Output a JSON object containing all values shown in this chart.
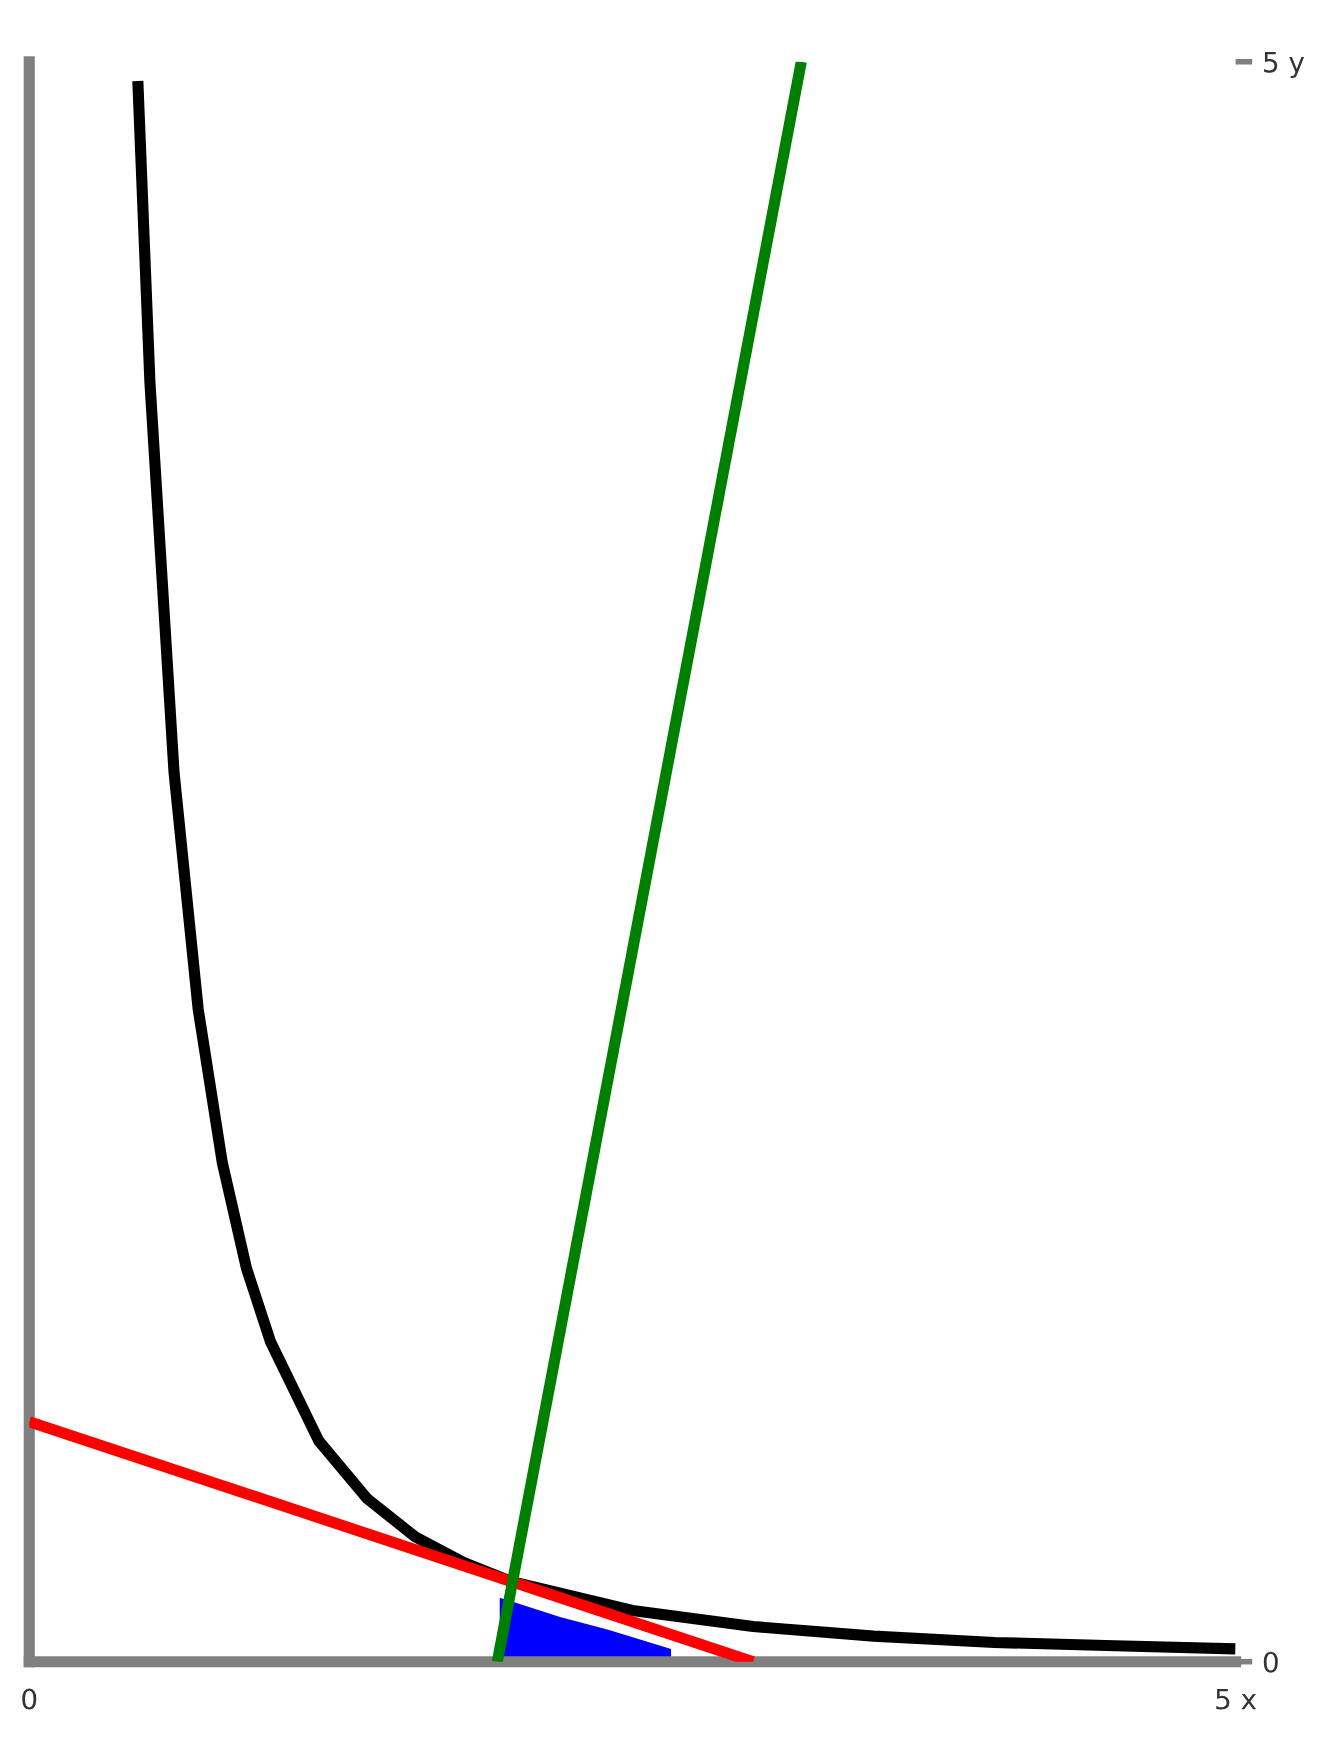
{
  "chart_data": {
    "type": "line",
    "xlim": [
      0,
      5
    ],
    "ylim": [
      0,
      5
    ],
    "xticks": [
      0,
      {
        "value": 5,
        "label": "5 x"
      }
    ],
    "yticks": [
      0,
      {
        "value": 5,
        "label": "5 y"
      }
    ],
    "series": [
      {
        "type": "area",
        "color": "#0000ff",
        "x": [
          1.95,
          2.2,
          2.4,
          2.66
        ],
        "values": [
          0.2,
          0.14,
          0.1,
          0.04
        ]
      },
      {
        "color": "#000000",
        "x": [
          0.45,
          0.5,
          0.6,
          0.7,
          0.8,
          0.9,
          1.0,
          1.2,
          1.4,
          1.6,
          1.8,
          2.0,
          2.5,
          3.0,
          3.5,
          4.0,
          4.5,
          5.0
        ],
        "values": [
          4.94,
          4.0,
          2.78,
          2.04,
          1.56,
          1.23,
          1.0,
          0.69,
          0.51,
          0.39,
          0.31,
          0.25,
          0.16,
          0.11,
          0.08,
          0.06,
          0.05,
          0.04
        ]
      },
      {
        "color": "#ff0000",
        "x": [
          0,
          3.0
        ],
        "values": [
          0.75,
          0
        ]
      },
      {
        "color": "#008000",
        "x": [
          1.94,
          3.2
        ],
        "values": [
          0,
          5
        ]
      }
    ],
    "grid": false,
    "legend": false
  }
}
